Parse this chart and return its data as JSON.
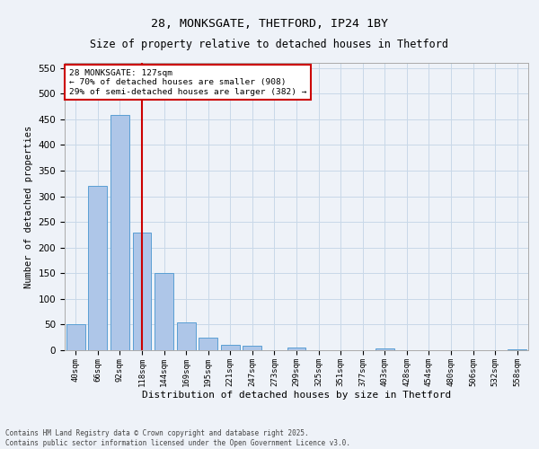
{
  "title1": "28, MONKSGATE, THETFORD, IP24 1BY",
  "title2": "Size of property relative to detached houses in Thetford",
  "xlabel": "Distribution of detached houses by size in Thetford",
  "ylabel": "Number of detached properties",
  "categories": [
    "40sqm",
    "66sqm",
    "92sqm",
    "118sqm",
    "144sqm",
    "169sqm",
    "195sqm",
    "221sqm",
    "247sqm",
    "273sqm",
    "299sqm",
    "325sqm",
    "351sqm",
    "377sqm",
    "403sqm",
    "428sqm",
    "454sqm",
    "480sqm",
    "506sqm",
    "532sqm",
    "558sqm"
  ],
  "values": [
    50,
    320,
    458,
    230,
    150,
    55,
    25,
    10,
    8,
    0,
    5,
    0,
    0,
    0,
    3,
    0,
    0,
    0,
    0,
    0,
    2
  ],
  "bar_color": "#aec6e8",
  "bar_edge_color": "#5a9fd4",
  "grid_color": "#c8d8e8",
  "background_color": "#eef2f8",
  "vline_x": 3,
  "vline_color": "#cc0000",
  "annotation_title": "28 MONKSGATE: 127sqm",
  "annotation_line1": "← 70% of detached houses are smaller (908)",
  "annotation_line2": "29% of semi-detached houses are larger (382) →",
  "annotation_box_color": "#cc0000",
  "footer": "Contains HM Land Registry data © Crown copyright and database right 2025.\nContains public sector information licensed under the Open Government Licence v3.0.",
  "ylim": [
    0,
    560
  ],
  "yticks": [
    0,
    50,
    100,
    150,
    200,
    250,
    300,
    350,
    400,
    450,
    500,
    550
  ]
}
